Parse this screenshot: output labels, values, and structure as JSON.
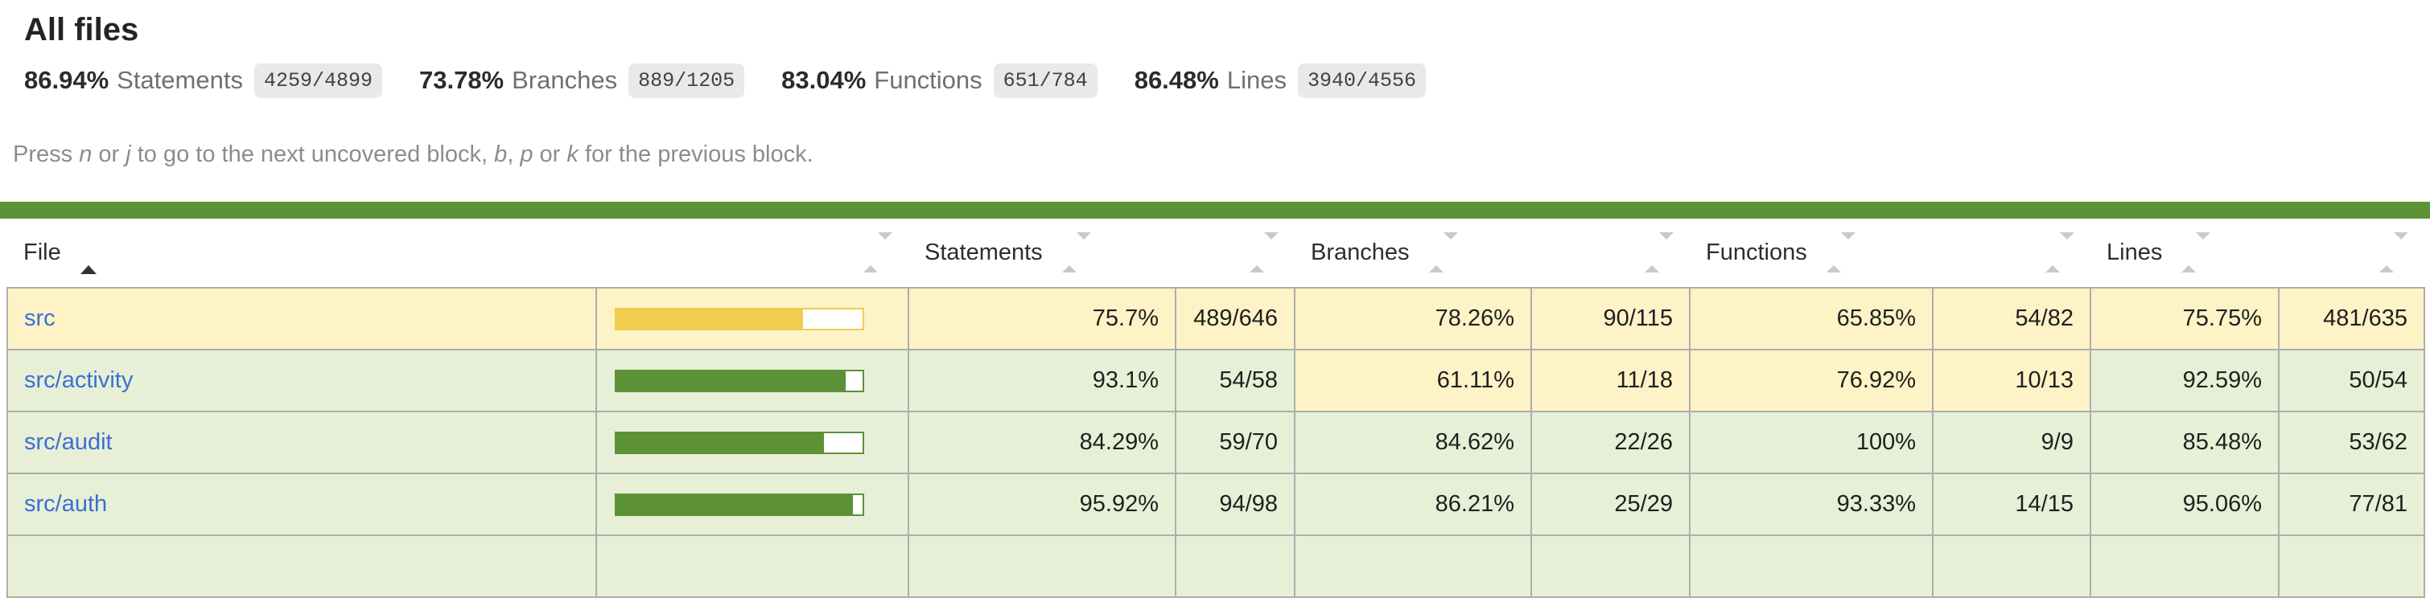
{
  "page": {
    "title": "All files"
  },
  "summary": {
    "metrics": [
      {
        "pct": "86.94%",
        "label": "Statements",
        "fraction": "4259/4899"
      },
      {
        "pct": "73.78%",
        "label": "Branches",
        "fraction": "889/1205"
      },
      {
        "pct": "83.04%",
        "label": "Functions",
        "fraction": "651/784"
      },
      {
        "pct": "86.48%",
        "label": "Lines",
        "fraction": "3940/4556"
      }
    ]
  },
  "hint": {
    "prefix": "Press ",
    "key_next_1": "n",
    "sep_1": " or ",
    "key_next_2": "j",
    "mid": " to go to the next uncovered block, ",
    "key_prev_1": "b",
    "sep_2": ", ",
    "key_prev_2": "p",
    "sep_3": " or ",
    "key_prev_3": "k",
    "suffix": " for the previous block."
  },
  "table": {
    "columns": [
      {
        "label": "File",
        "sort": "asc"
      },
      {
        "label": "",
        "sort": "none"
      },
      {
        "label": "Statements",
        "sort": "none"
      },
      {
        "label": "",
        "sort": "none"
      },
      {
        "label": "Branches",
        "sort": "none"
      },
      {
        "label": "",
        "sort": "none"
      },
      {
        "label": "Functions",
        "sort": "none"
      },
      {
        "label": "",
        "sort": "none"
      },
      {
        "label": "Lines",
        "sort": "none"
      },
      {
        "label": "",
        "sort": "none"
      }
    ],
    "rows": [
      {
        "file": "src",
        "bar_pct": 75.7,
        "statements_pct": "75.7%",
        "statements_raw": "489/646",
        "branches_pct": "78.26%",
        "branches_raw": "90/115",
        "functions_pct": "65.85%",
        "functions_raw": "54/82",
        "lines_pct": "75.75%",
        "lines_raw": "481/635"
      },
      {
        "file": "src/activity",
        "bar_pct": 93.1,
        "statements_pct": "93.1%",
        "statements_raw": "54/58",
        "branches_pct": "61.11%",
        "branches_raw": "11/18",
        "functions_pct": "76.92%",
        "functions_raw": "10/13",
        "lines_pct": "92.59%",
        "lines_raw": "50/54"
      },
      {
        "file": "src/audit",
        "bar_pct": 84.29,
        "statements_pct": "84.29%",
        "statements_raw": "59/70",
        "branches_pct": "84.62%",
        "branches_raw": "22/26",
        "functions_pct": "100%",
        "functions_raw": "9/9",
        "lines_pct": "85.48%",
        "lines_raw": "53/62"
      },
      {
        "file": "src/auth",
        "bar_pct": 95.92,
        "statements_pct": "95.92%",
        "statements_raw": "94/98",
        "branches_pct": "86.21%",
        "branches_raw": "25/29",
        "functions_pct": "93.33%",
        "functions_raw": "14/15",
        "lines_pct": "95.06%",
        "lines_raw": "77/81"
      },
      {
        "file": "",
        "bar_pct": 0,
        "statements_pct": "",
        "statements_raw": "",
        "branches_pct": "",
        "branches_raw": "",
        "functions_pct": "",
        "functions_raw": "",
        "lines_pct": "",
        "lines_raw": ""
      }
    ]
  },
  "colors": {
    "banner_green": "#5c9136",
    "high_fill": "#5c9136",
    "high_bg": "#e7f0d6",
    "medium_fill": "#f1cd4f",
    "medium_bg": "#fdf3c6",
    "link_blue": "#3b6fd6",
    "fraction_badge_bg": "#e9e9e9",
    "table_border": "#adadad"
  }
}
